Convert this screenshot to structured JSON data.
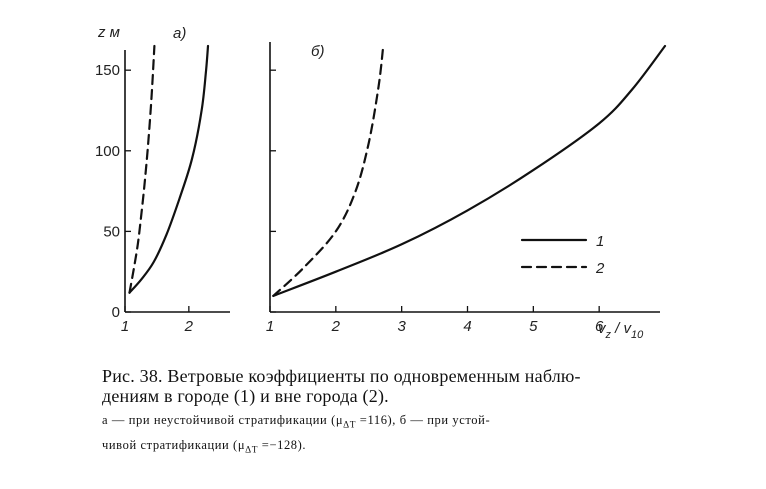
{
  "chart_data": [
    {
      "type": "line",
      "panel_label": "а)",
      "ylabel": "z м",
      "xlim": [
        1,
        2.3
      ],
      "ylim": [
        0,
        165
      ],
      "x_ticks": [
        "1",
        "2"
      ],
      "y_ticks": [
        "0",
        "50",
        "100",
        "150"
      ],
      "series": [
        {
          "name": "1",
          "style": "solid",
          "x": [
            1.07,
            1.25,
            1.45,
            1.65,
            1.85,
            2.05,
            2.2,
            2.27,
            2.3
          ],
          "y": [
            12,
            20,
            31,
            48,
            70,
            95,
            125,
            150,
            165
          ]
        },
        {
          "name": "2",
          "style": "dashed",
          "x": [
            1.07,
            1.13,
            1.2,
            1.26,
            1.32,
            1.37,
            1.41,
            1.44,
            1.46
          ],
          "y": [
            12,
            25,
            42,
            62,
            85,
            108,
            130,
            150,
            165
          ]
        }
      ]
    },
    {
      "type": "line",
      "panel_label": "б)",
      "xlabel": "v_z / v_10",
      "xlim": [
        1,
        7
      ],
      "ylim": [
        0,
        165
      ],
      "x_ticks": [
        "1",
        "2",
        "3",
        "4",
        "5",
        "6"
      ],
      "series": [
        {
          "name": "1",
          "style": "solid",
          "x": [
            1.05,
            2.0,
            3.0,
            4.0,
            5.0,
            6.0,
            6.5,
            7.0
          ],
          "y": [
            10,
            25,
            42,
            63,
            88,
            117,
            138,
            165
          ]
        },
        {
          "name": "2",
          "style": "dashed",
          "x": [
            1.05,
            1.5,
            2.0,
            2.3,
            2.5,
            2.65,
            2.72
          ],
          "y": [
            10,
            27,
            50,
            75,
            105,
            140,
            165
          ]
        }
      ],
      "legend": {
        "position": "right",
        "entries": [
          {
            "label": "1",
            "style": "solid"
          },
          {
            "label": "2",
            "style": "dashed"
          }
        ]
      }
    }
  ],
  "caption": {
    "main_line1": "Рис. 38. Ветровые коэффициенты по одновременным наблю-",
    "main_line2": "дениям в городе (1) и вне города (2).",
    "sub_line1_a": "а — при неустойчивой стратификации (μ",
    "sub_line1_b": " =116),  б — при устой-",
    "sub_line2_a": "чивой стратификации (μ",
    "sub_line2_b": " =−128).",
    "sub_index": "ΔT"
  }
}
